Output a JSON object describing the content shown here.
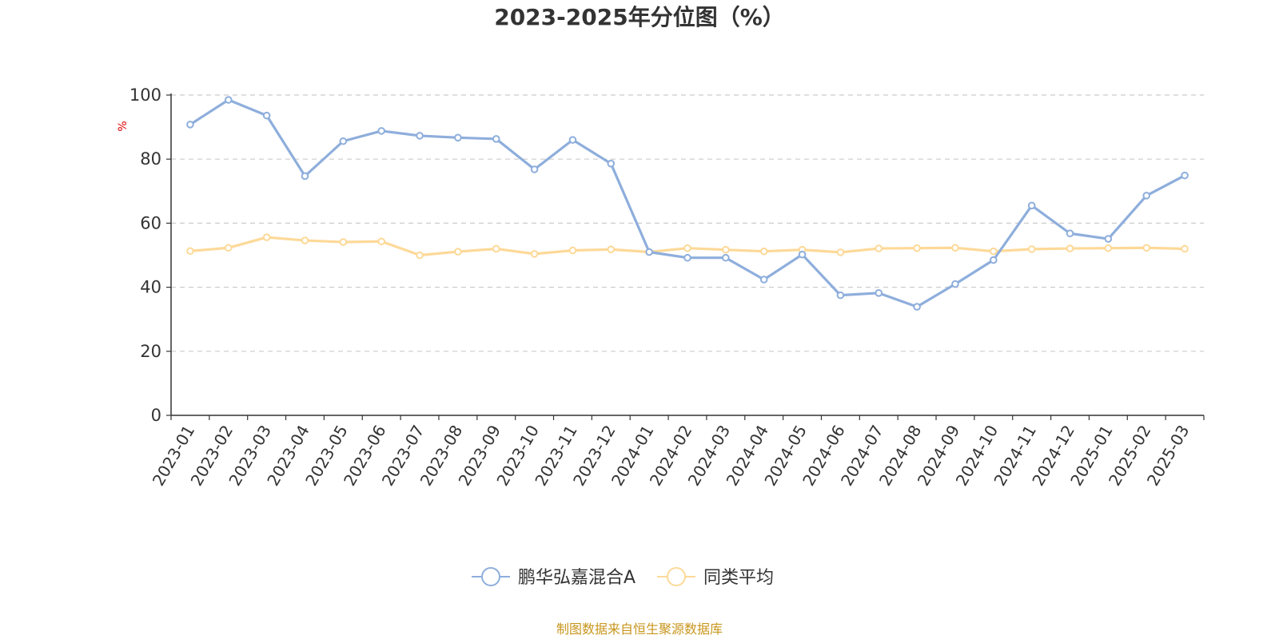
{
  "title": "2023-2025年分位图（%）",
  "source": "制图数据来自恒生聚源数据库",
  "chart_data": {
    "type": "line",
    "title": "2023-2025年分位图（%）",
    "ylabel": "%",
    "xlabel": "",
    "ylim": [
      0,
      100
    ],
    "yticks": [
      0,
      20,
      40,
      60,
      80,
      100
    ],
    "grid": true,
    "legend_position": "bottom-center",
    "categories": [
      "2023-01",
      "2023-02",
      "2023-03",
      "2023-04",
      "2023-05",
      "2023-06",
      "2023-07",
      "2023-08",
      "2023-09",
      "2023-10",
      "2023-11",
      "2023-12",
      "2024-01",
      "2024-02",
      "2024-03",
      "2024-04",
      "2024-05",
      "2024-06",
      "2024-07",
      "2024-08",
      "2024-09",
      "2024-10",
      "2024-11",
      "2024-12",
      "2025-01",
      "2025-02",
      "2025-03"
    ],
    "series": [
      {
        "name": "鹏华弘嘉混合A",
        "color": "#8eaedc",
        "values": [
          90.8,
          98.5,
          93.6,
          74.7,
          85.6,
          88.8,
          87.3,
          86.7,
          86.3,
          76.8,
          86.0,
          78.6,
          51.0,
          49.2,
          49.2,
          42.4,
          50.2,
          37.5,
          38.2,
          33.9,
          41.0,
          48.5,
          65.5,
          56.8,
          55.1,
          68.6,
          74.9
        ]
      },
      {
        "name": "同类平均",
        "color": "#fdd998",
        "values": [
          51.3,
          52.3,
          55.6,
          54.6,
          54.1,
          54.3,
          50.0,
          51.1,
          52.0,
          50.4,
          51.5,
          51.8,
          51.0,
          52.2,
          51.7,
          51.2,
          51.7,
          50.9,
          52.1,
          52.2,
          52.3,
          51.2,
          51.9,
          52.1,
          52.2,
          52.3,
          52.0
        ]
      }
    ]
  }
}
